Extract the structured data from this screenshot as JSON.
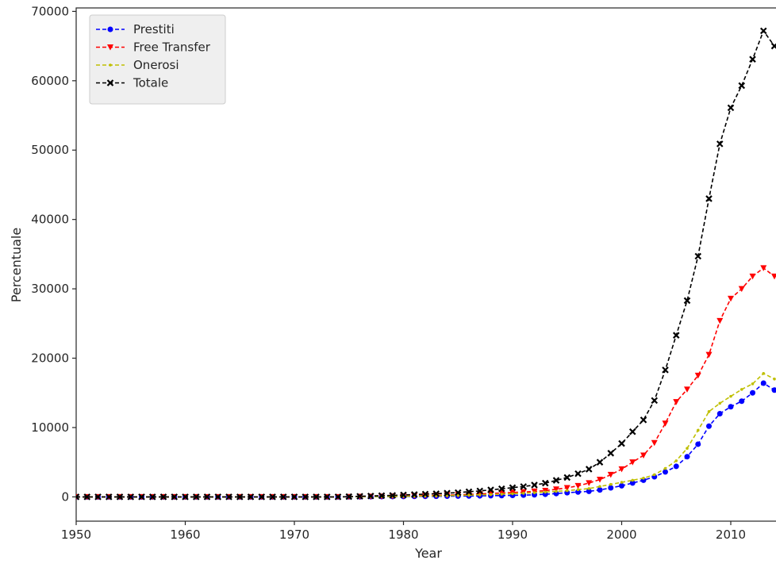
{
  "chart_data": {
    "type": "line",
    "title": "",
    "xlabel": "Year",
    "ylabel": "Percentuale",
    "xlim": [
      1950,
      2013.5
    ],
    "ylim": [
      -3500,
      70500
    ],
    "xticks": [
      1950,
      1960,
      1970,
      1980,
      1990,
      2000,
      2010
    ],
    "yticks": [
      0,
      10000,
      20000,
      30000,
      40000,
      50000,
      60000,
      70000
    ],
    "grid": false,
    "legend": "top-left",
    "x": [
      1950,
      1951,
      1952,
      1953,
      1954,
      1955,
      1956,
      1957,
      1958,
      1959,
      1960,
      1961,
      1962,
      1963,
      1964,
      1965,
      1966,
      1967,
      1968,
      1969,
      1970,
      1971,
      1972,
      1973,
      1974,
      1975,
      1976,
      1977,
      1978,
      1979,
      1980,
      1981,
      1982,
      1983,
      1984,
      1985,
      1986,
      1987,
      1988,
      1989,
      1990,
      1991,
      1992,
      1993,
      1994,
      1995,
      1996,
      1997,
      1998,
      1999,
      2000,
      2001,
      2002,
      2003,
      2004,
      2005,
      2006,
      2007,
      2008,
      2009,
      2010,
      2011,
      2012,
      2013,
      2014
    ],
    "series": [
      {
        "name": "Prestiti",
        "color": "#0000ff",
        "marker": "circle",
        "values": [
          0,
          0,
          0,
          0,
          0,
          0,
          0,
          0,
          0,
          0,
          0,
          0,
          0,
          0,
          0,
          0,
          0,
          0,
          0,
          0,
          0,
          0,
          0,
          0,
          0,
          10,
          20,
          30,
          40,
          50,
          60,
          70,
          80,
          90,
          100,
          110,
          130,
          150,
          170,
          190,
          220,
          260,
          300,
          380,
          480,
          600,
          700,
          800,
          1000,
          1300,
          1600,
          2000,
          2400,
          2900,
          3600,
          4400,
          5800,
          7600,
          10200,
          12000,
          13000,
          13800,
          15000,
          16400,
          15400
        ]
      },
      {
        "name": "Free Transfer",
        "color": "#ff0000",
        "marker": "triangle-down",
        "values": [
          0,
          0,
          0,
          0,
          0,
          0,
          0,
          0,
          0,
          0,
          0,
          0,
          0,
          0,
          0,
          0,
          0,
          0,
          0,
          0,
          0,
          0,
          0,
          0,
          0,
          20,
          40,
          60,
          80,
          100,
          130,
          160,
          190,
          220,
          260,
          300,
          360,
          420,
          500,
          580,
          650,
          700,
          800,
          900,
          1100,
          1300,
          1600,
          2000,
          2500,
          3200,
          4000,
          5000,
          6000,
          7800,
          10600,
          13700,
          15500,
          17500,
          20500,
          25400,
          28600,
          30000,
          31800,
          33000,
          31800
        ]
      },
      {
        "name": "Onerosi",
        "color": "#bfbf00",
        "marker": "dot",
        "values": [
          0,
          0,
          0,
          0,
          0,
          0,
          0,
          0,
          0,
          0,
          0,
          0,
          0,
          0,
          0,
          0,
          0,
          0,
          0,
          0,
          0,
          0,
          0,
          0,
          0,
          10,
          30,
          40,
          60,
          70,
          90,
          110,
          130,
          150,
          180,
          210,
          250,
          290,
          340,
          400,
          460,
          530,
          610,
          700,
          800,
          900,
          1050,
          1200,
          1500,
          1800,
          2100,
          2400,
          2700,
          3200,
          4100,
          5200,
          7000,
          9600,
          12300,
          13500,
          14500,
          15500,
          16300,
          17800,
          17000
        ]
      },
      {
        "name": "Totale",
        "color": "#000000",
        "marker": "x",
        "values": [
          0,
          0,
          0,
          0,
          0,
          0,
          0,
          0,
          0,
          0,
          0,
          0,
          0,
          0,
          0,
          0,
          0,
          0,
          0,
          0,
          0,
          0,
          0,
          0,
          0,
          40,
          90,
          130,
          180,
          220,
          280,
          340,
          400,
          460,
          540,
          620,
          740,
          860,
          1010,
          1170,
          1330,
          1490,
          1710,
          1980,
          2380,
          2800,
          3350,
          4000,
          5000,
          6300,
          7700,
          9400,
          11100,
          13900,
          18300,
          23300,
          28300,
          34700,
          43000,
          50900,
          56100,
          59300,
          63100,
          67200,
          65000
        ]
      }
    ]
  }
}
